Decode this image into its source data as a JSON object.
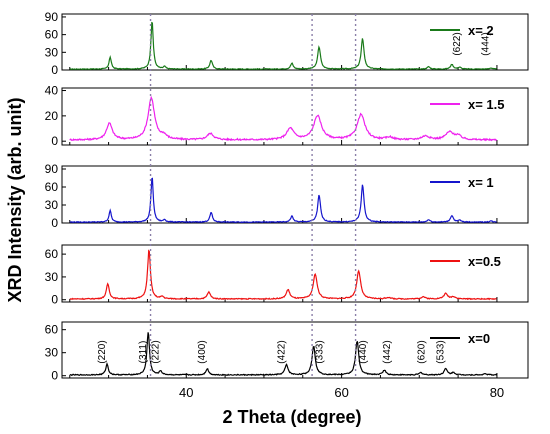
{
  "chart_data": {
    "type": "line",
    "ylabel": "XRD Intensity (arb. unit)",
    "xlabel": "2 Theta (degree)",
    "xlim": [
      24,
      84
    ],
    "x_ticks": [
      40,
      60,
      80
    ],
    "reference_lines_x": [
      35.4,
      56.2,
      61.8
    ],
    "panels": [
      {
        "name": "x= 2",
        "color": "#1a7a1a",
        "ylim": [
          0,
          95
        ],
        "y_ticks": [
          0,
          30,
          60,
          90
        ],
        "baseline": 1.5,
        "peaks": [
          {
            "x": 30.2,
            "h": 20,
            "w": 0.18
          },
          {
            "x": 35.6,
            "h": 82,
            "w": 0.18
          },
          {
            "x": 37.2,
            "h": 4,
            "w": 0.18
          },
          {
            "x": 43.2,
            "h": 15,
            "w": 0.2
          },
          {
            "x": 53.6,
            "h": 10,
            "w": 0.2
          },
          {
            "x": 57.1,
            "h": 38,
            "w": 0.22
          },
          {
            "x": 62.7,
            "h": 52,
            "w": 0.22
          },
          {
            "x": 71.2,
            "h": 4,
            "w": 0.22
          },
          {
            "x": 74.2,
            "h": 8,
            "w": 0.22
          },
          {
            "x": 75.2,
            "h": 3,
            "w": 0.22
          },
          {
            "x": 79.2,
            "h": 2,
            "w": 0.22
          }
        ],
        "annotations": [
          {
            "text": "(622)",
            "x": 75.5
          },
          {
            "text": "(444)",
            "x": 79.2
          }
        ]
      },
      {
        "name": "x= 1.5",
        "color": "#ee22ee",
        "ylim": [
          -3,
          42
        ],
        "y_ticks": [
          0,
          20,
          40
        ],
        "baseline": 1,
        "peaks": [
          {
            "x": 30.1,
            "h": 13,
            "w": 0.45
          },
          {
            "x": 35.5,
            "h": 33,
            "w": 0.5
          },
          {
            "x": 37.1,
            "h": 3,
            "w": 0.45
          },
          {
            "x": 43.1,
            "h": 5,
            "w": 0.5
          },
          {
            "x": 53.4,
            "h": 9,
            "w": 0.55
          },
          {
            "x": 56.9,
            "h": 19,
            "w": 0.6
          },
          {
            "x": 62.5,
            "h": 20,
            "w": 0.6
          },
          {
            "x": 66.2,
            "h": 2,
            "w": 0.5
          },
          {
            "x": 70.8,
            "h": 3,
            "w": 0.6
          },
          {
            "x": 73.9,
            "h": 6,
            "w": 0.6
          },
          {
            "x": 75.0,
            "h": 3,
            "w": 0.5
          }
        ],
        "annotations": []
      },
      {
        "name": "x= 1",
        "color": "#1515cc",
        "ylim": [
          0,
          95
        ],
        "y_ticks": [
          0,
          30,
          60,
          90
        ],
        "baseline": 1.5,
        "peaks": [
          {
            "x": 30.2,
            "h": 19,
            "w": 0.18
          },
          {
            "x": 35.6,
            "h": 76,
            "w": 0.18
          },
          {
            "x": 37.2,
            "h": 4,
            "w": 0.18
          },
          {
            "x": 43.2,
            "h": 16,
            "w": 0.2
          },
          {
            "x": 53.6,
            "h": 10,
            "w": 0.2
          },
          {
            "x": 57.1,
            "h": 45,
            "w": 0.22
          },
          {
            "x": 62.7,
            "h": 62,
            "w": 0.22
          },
          {
            "x": 71.2,
            "h": 4,
            "w": 0.22
          },
          {
            "x": 74.2,
            "h": 11,
            "w": 0.22
          },
          {
            "x": 75.2,
            "h": 3,
            "w": 0.22
          },
          {
            "x": 79.2,
            "h": 2,
            "w": 0.22
          }
        ],
        "annotations": []
      },
      {
        "name": "x=0.5",
        "color": "#ee1111",
        "ylim": [
          -3,
          72
        ],
        "y_ticks": [
          0,
          30,
          60
        ],
        "baseline": 1,
        "peaks": [
          {
            "x": 29.9,
            "h": 20,
            "w": 0.22
          },
          {
            "x": 35.2,
            "h": 65,
            "w": 0.22
          },
          {
            "x": 36.9,
            "h": 3,
            "w": 0.22
          },
          {
            "x": 42.9,
            "h": 9,
            "w": 0.25
          },
          {
            "x": 53.1,
            "h": 12,
            "w": 0.28
          },
          {
            "x": 56.6,
            "h": 33,
            "w": 0.3
          },
          {
            "x": 62.2,
            "h": 37,
            "w": 0.3
          },
          {
            "x": 66.0,
            "h": 2,
            "w": 0.3
          },
          {
            "x": 70.5,
            "h": 3,
            "w": 0.3
          },
          {
            "x": 73.4,
            "h": 7,
            "w": 0.3
          },
          {
            "x": 74.4,
            "h": 3,
            "w": 0.3
          }
        ],
        "annotations": []
      },
      {
        "name": "x=0",
        "color": "#000000",
        "ylim": [
          -3,
          70
        ],
        "y_ticks": [
          0,
          30,
          60
        ],
        "baseline": 1,
        "peaks": [
          {
            "x": 29.8,
            "h": 14,
            "w": 0.2
          },
          {
            "x": 35.1,
            "h": 56,
            "w": 0.2
          },
          {
            "x": 36.7,
            "h": 5,
            "w": 0.2
          },
          {
            "x": 42.7,
            "h": 8,
            "w": 0.22
          },
          {
            "x": 52.9,
            "h": 13,
            "w": 0.25
          },
          {
            "x": 56.4,
            "h": 38,
            "w": 0.25
          },
          {
            "x": 62.0,
            "h": 44,
            "w": 0.25
          },
          {
            "x": 65.5,
            "h": 6,
            "w": 0.25
          },
          {
            "x": 70.2,
            "h": 3,
            "w": 0.25
          },
          {
            "x": 73.4,
            "h": 8,
            "w": 0.25
          },
          {
            "x": 74.4,
            "h": 3,
            "w": 0.25
          },
          {
            "x": 78.5,
            "h": 1.5,
            "w": 0.25
          }
        ],
        "annotations": [
          {
            "text": "(220)",
            "x": 29.8
          },
          {
            "text": "(311)",
            "x": 35.1
          },
          {
            "text": "(222)",
            "x": 36.7
          },
          {
            "text": "(400)",
            "x": 42.7
          },
          {
            "text": "(422)",
            "x": 52.9
          },
          {
            "text": "(333)",
            "x": 57.8
          },
          {
            "text": "(440)",
            "x": 63.4
          },
          {
            "text": "(442)",
            "x": 66.5
          },
          {
            "text": "(620)",
            "x": 70.9
          },
          {
            "text": "(533)",
            "x": 73.4
          }
        ]
      }
    ]
  }
}
